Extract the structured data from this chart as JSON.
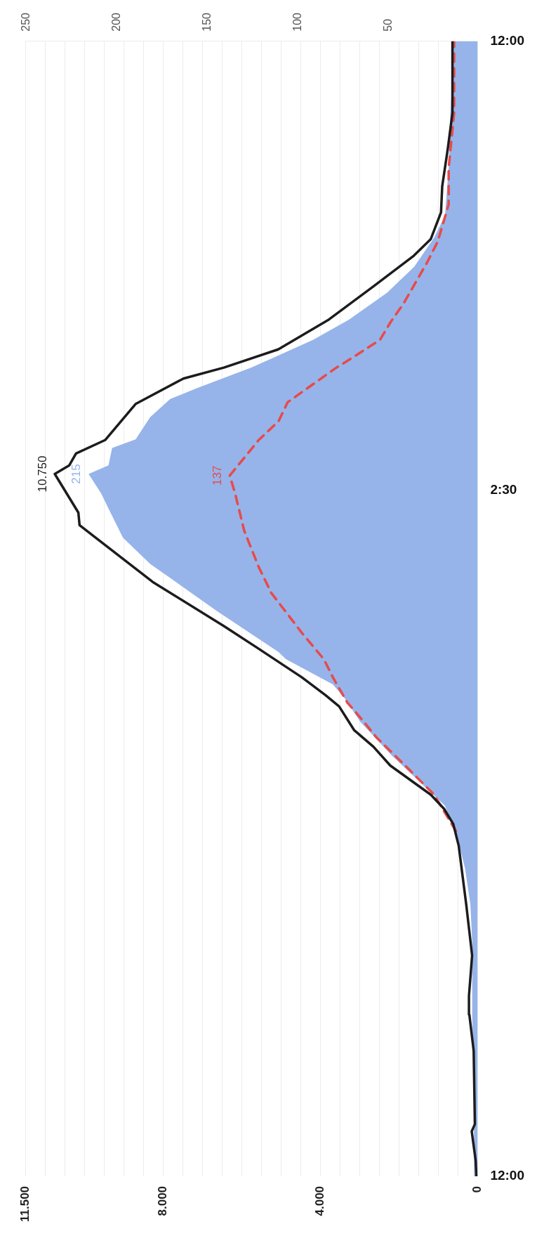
{
  "chart_data": {
    "type": "line",
    "orientation": "horizontal",
    "ylim": [
      "2000-01-01T12:00",
      "2000-01-02T12:00"
    ],
    "yticks": [
      {
        "value": "2000-01-01T12:00",
        "label": "12:00"
      },
      {
        "value": "2000-01-02T02:30",
        "label": "2:30"
      },
      {
        "value": "2000-01-02T12:00",
        "label": "12:00"
      }
    ],
    "xlim": [
      11500,
      0
    ],
    "xticks": [
      0,
      {
        "value": 500,
        "label": null
      },
      {
        "value": 1000,
        "label": null
      },
      {
        "value": 1500,
        "label": null
      },
      {
        "value": 2000,
        "label": null
      },
      {
        "value": 2500,
        "label": null
      },
      {
        "value": 3000,
        "label": null
      },
      {
        "value": 3500,
        "label": null
      },
      {
        "value": 4000,
        "label": "4.000"
      },
      {
        "value": 4500,
        "label": null
      },
      {
        "value": 5000,
        "label": null
      },
      {
        "value": 5500,
        "label": null
      },
      {
        "value": 6000,
        "label": null
      },
      {
        "value": 6500,
        "label": null
      },
      {
        "value": 7000,
        "label": null
      },
      {
        "value": 7500,
        "label": null
      },
      {
        "value": 8000,
        "label": "8.000"
      },
      {
        "value": 8500,
        "label": null
      },
      {
        "value": 9000,
        "label": null
      },
      {
        "value": 9500,
        "label": null
      },
      {
        "value": 10000,
        "label": null
      },
      {
        "value": 10500,
        "label": null
      },
      {
        "value": 11000,
        "label": null
      },
      {
        "value": 11500,
        "label": "11.500"
      }
    ],
    "x2lim": [
      250,
      0
    ],
    "x2ticks": [
      50,
      100,
      150,
      200,
      250
    ],
    "grid": "x",
    "marker": "none",
    "series": [
      {
        "type": "area",
        "axis": "x2",
        "color": "#96b4ea",
        "x": [
          "2000-01-01T12:00",
          "2000-01-01T13:52",
          "2000-01-01T15:25",
          "2000-01-01T16:58",
          "2000-01-01T17:45",
          "2000-01-01T18:31",
          "2000-01-01T19:08",
          "2000-01-01T19:50",
          "2000-01-01T20:55",
          "2000-01-01T21:37",
          "2000-01-01T22:05",
          "2000-01-01T22:24",
          "2000-01-01T22:56",
          "2000-01-01T23:05",
          "2000-01-01T23:57",
          "2000-01-02T00:57",
          "2000-01-02T01:30",
          "2000-01-02T02:07",
          "2000-01-02T02:26",
          "2000-01-02T02:51",
          "2000-01-02T03:02",
          "2000-01-02T03:24",
          "2000-01-02T03:35",
          "2000-01-02T04:03",
          "2000-01-02T04:26",
          "2000-01-02T04:40",
          "2000-01-02T05:06",
          "2000-01-02T05:41",
          "2000-01-02T06:07",
          "2000-01-02T06:41",
          "2000-01-02T07:14",
          "2000-01-02T07:51",
          "2000-01-02T08:19",
          "2000-01-02T09:20",
          "2000-01-02T10:30",
          "2000-01-02T11:16",
          "2000-01-02T12:00"
        ],
        "values": [
          2,
          2,
          3,
          3,
          4,
          7,
          11,
          18,
          48,
          65,
          73,
          80,
          106,
          110,
          144,
          181,
          196,
          204,
          208,
          215,
          204,
          202,
          189,
          181,
          170,
          155,
          125,
          91,
          71,
          50,
          35,
          24,
          18,
          16,
          15,
          14,
          14
        ],
        "value_labels": [
          null,
          null,
          null,
          null,
          null,
          null,
          null,
          null,
          null,
          null,
          null,
          null,
          null,
          null,
          null,
          null,
          null,
          null,
          null,
          "215",
          null,
          null,
          null,
          null,
          null,
          null,
          null,
          null,
          null,
          null,
          null,
          null,
          null,
          null,
          null,
          null,
          null
        ]
      },
      {
        "type": "line",
        "color": "#1c1c1c",
        "line_style": "solid",
        "x": [
          "2000-01-01T12:00",
          "2000-01-01T12:20",
          "2000-01-01T12:57",
          "2000-01-01T13:06",
          "2000-01-01T14:39",
          "2000-01-01T15:25",
          "2000-01-01T15:49",
          "2000-01-01T16:40",
          "2000-01-01T17:45",
          "2000-01-01T18:59",
          "2000-01-01T19:27",
          "2000-01-01T19:46",
          "2000-01-01T20:04",
          "2000-01-01T20:41",
          "2000-01-01T21:05",
          "2000-01-01T21:26",
          "2000-01-01T21:56",
          "2000-01-01T22:10",
          "2000-01-01T22:33",
          "2000-01-01T23:10",
          "2000-01-01T23:38",
          "2000-01-02T00:34",
          "2000-01-02T01:46",
          "2000-01-02T02:02",
          "2000-01-02T02:51",
          "2000-01-02T03:02",
          "2000-01-02T03:17",
          "2000-01-02T03:34",
          "2000-01-02T04:20",
          "2000-01-02T04:52",
          "2000-01-02T05:06",
          "2000-01-02T05:29",
          "2000-01-02T06:07",
          "2000-01-02T06:49",
          "2000-01-02T07:28",
          "2000-01-02T07:49",
          "2000-01-02T08:23",
          "2000-01-02T08:56",
          "2000-01-02T09:43",
          "2000-01-02T10:29",
          "2000-01-02T11:16",
          "2000-01-02T12:00"
        ],
        "values": [
          30,
          50,
          150,
          70,
          100,
          210,
          220,
          140,
          290,
          480,
          620,
          850,
          1190,
          2220,
          2650,
          3140,
          3520,
          3860,
          4470,
          5590,
          6450,
          8260,
          10120,
          10150,
          10750,
          10380,
          10210,
          9470,
          8690,
          7480,
          6450,
          5070,
          3780,
          2650,
          1620,
          1190,
          930,
          900,
          760,
          640,
          640,
          640
        ],
        "value_labels": [
          null,
          null,
          null,
          null,
          null,
          null,
          null,
          null,
          null,
          null,
          null,
          null,
          null,
          null,
          null,
          null,
          null,
          null,
          null,
          null,
          null,
          null,
          null,
          null,
          "10.750",
          null,
          null,
          null,
          null,
          null,
          null,
          null,
          null,
          null,
          null,
          null,
          null,
          null,
          null,
          null,
          null,
          null
        ]
      },
      {
        "type": "line",
        "axis": "x2",
        "color": "#e84a4a",
        "line_style": "dashed",
        "x": [
          "2000-01-01T19:18",
          "2000-01-01T20:04",
          "2000-01-01T20:41",
          "2000-01-01T21:17",
          "2000-01-01T21:37",
          "2000-01-01T22:01",
          "2000-01-01T22:33",
          "2000-01-01T22:56",
          "2000-01-01T23:29",
          "2000-01-02T00:20",
          "2000-01-02T00:53",
          "2000-01-02T01:39",
          "2000-01-02T02:26",
          "2000-01-02T02:49",
          "2000-01-02T03:17",
          "2000-01-02T03:34",
          "2000-01-02T03:58",
          "2000-01-02T04:22",
          "2000-01-02T04:35",
          "2000-01-02T05:06",
          "2000-01-02T05:13",
          "2000-01-02T05:41",
          "2000-01-02T06:04",
          "2000-01-02T06:27",
          "2000-01-02T07:19",
          "2000-01-02T07:46",
          "2000-01-02T08:33",
          "2000-01-02T09:19",
          "2000-01-02T10:29",
          "2000-01-02T11:16",
          "2000-01-02T12:00"
        ],
        "values": [
          12,
          24,
          40,
          56,
          63,
          72,
          80,
          85,
          97,
          114,
          121,
          129,
          134,
          137,
          127,
          121,
          110,
          105,
          97,
          78,
          73,
          54,
          48,
          41,
          28,
          22,
          16,
          16,
          13,
          13,
          13
        ],
        "value_labels": [
          null,
          null,
          null,
          null,
          null,
          null,
          null,
          null,
          null,
          null,
          null,
          null,
          null,
          "137",
          null,
          null,
          null,
          null,
          null,
          null,
          null,
          null,
          null,
          null,
          null,
          null,
          null,
          null,
          null,
          null,
          null
        ]
      }
    ]
  }
}
